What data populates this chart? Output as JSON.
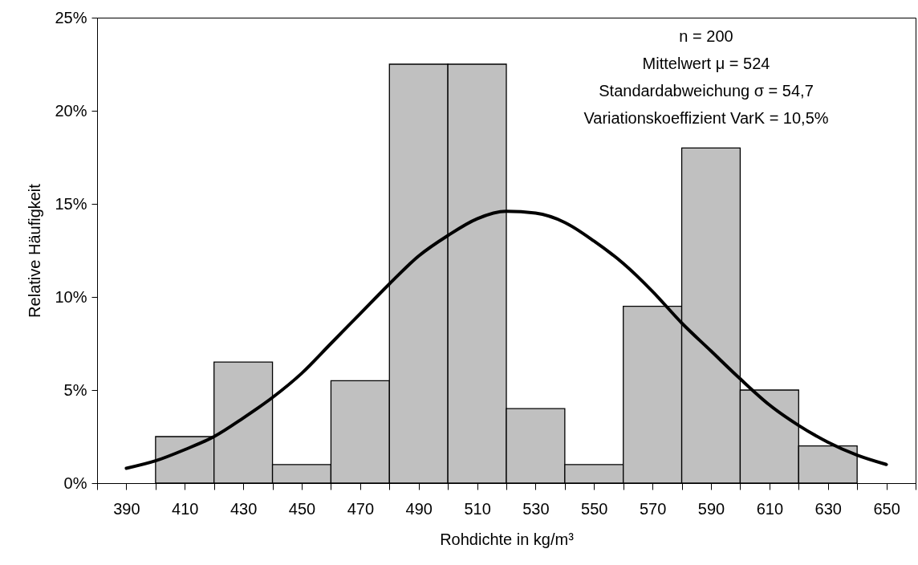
{
  "chart_data": {
    "type": "histogram",
    "xlabel": "Rohdichte in kg/m³",
    "ylabel": "Relative Häufigkeit",
    "bins": [
      400,
      420,
      440,
      460,
      480,
      500,
      520,
      540,
      560,
      580,
      600,
      620,
      640
    ],
    "values": [
      2.5,
      6.5,
      1,
      5.5,
      22.5,
      22.5,
      4,
      1,
      9.5,
      18,
      5,
      2
    ],
    "color": "#c0c0c0",
    "series": [
      {
        "type": "line",
        "color": "#000000",
        "x": [
          390,
          400,
          410,
          420,
          430,
          440,
          450,
          460,
          470,
          480,
          490,
          500,
          510,
          520,
          530,
          540,
          550,
          560,
          570,
          580,
          590,
          600,
          610,
          620,
          630,
          640,
          650
        ],
        "values": [
          0.8,
          1.2,
          1.8,
          2.5,
          3.5,
          4.6,
          5.9,
          7.5,
          9.1,
          10.7,
          12.2,
          13.3,
          14.2,
          14.6,
          14.5,
          14.0,
          13.0,
          11.8,
          10.3,
          8.6,
          7.1,
          5.6,
          4.2,
          3.1,
          2.2,
          1.5,
          1.0
        ]
      }
    ],
    "xlim": [
      380,
      660
    ],
    "xticks": [
      {
        "value": 380,
        "label": null
      },
      {
        "value": 390,
        "label": "390"
      },
      {
        "value": 400,
        "label": null
      },
      {
        "value": 410,
        "label": "410"
      },
      {
        "value": 420,
        "label": null
      },
      {
        "value": 430,
        "label": "430"
      },
      {
        "value": 440,
        "label": null
      },
      {
        "value": 450,
        "label": "450"
      },
      {
        "value": 460,
        "label": null
      },
      {
        "value": 470,
        "label": "470"
      },
      {
        "value": 480,
        "label": null
      },
      {
        "value": 490,
        "label": "490"
      },
      {
        "value": 500,
        "label": null
      },
      {
        "value": 510,
        "label": "510"
      },
      {
        "value": 520,
        "label": null
      },
      {
        "value": 530,
        "label": "530"
      },
      {
        "value": 540,
        "label": null
      },
      {
        "value": 550,
        "label": "550"
      },
      {
        "value": 560,
        "label": null
      },
      {
        "value": 570,
        "label": "570"
      },
      {
        "value": 580,
        "label": null
      },
      {
        "value": 590,
        "label": "590"
      },
      {
        "value": 600,
        "label": null
      },
      {
        "value": 610,
        "label": "610"
      },
      {
        "value": 620,
        "label": null
      },
      {
        "value": 630,
        "label": "630"
      },
      {
        "value": 640,
        "label": null
      },
      {
        "value": 650,
        "label": "650"
      },
      {
        "value": 660,
        "label": null
      }
    ],
    "ylim": [
      0,
      25
    ],
    "yticks": [
      {
        "value": 0,
        "label": "0%"
      },
      {
        "value": 5,
        "label": "5%"
      },
      {
        "value": 10,
        "label": "10%"
      },
      {
        "value": 15,
        "label": "15%"
      },
      {
        "value": 20,
        "label": "20%"
      },
      {
        "value": 25,
        "label": "25%"
      }
    ],
    "annotations": [
      "n = 200",
      "Mittelwert μ = 524",
      "Standardabweichung σ = 54,7",
      "Variationskoeffizient VarK = 10,5%"
    ],
    "grid": false
  }
}
